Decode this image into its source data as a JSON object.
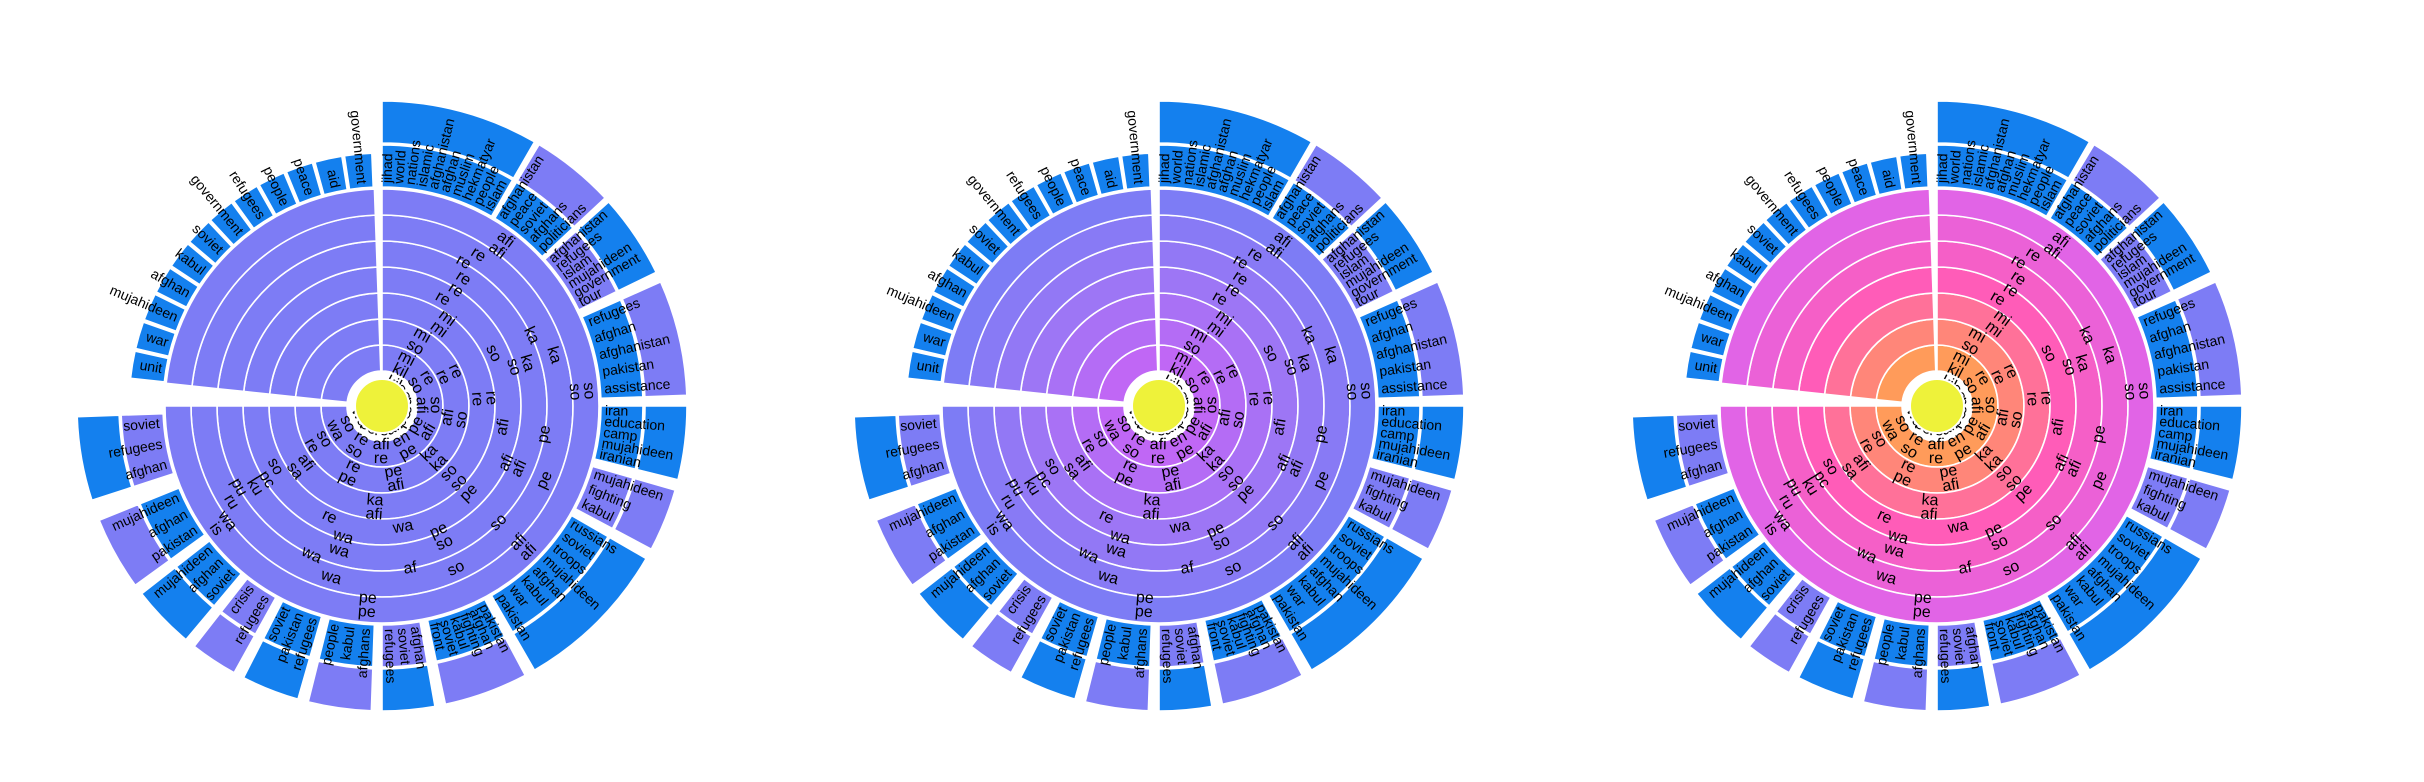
{
  "chart_data": {
    "type": "sunburst",
    "panel_count": 3,
    "color_variants": [
      {
        "name": "",
        "center": "#eef23a",
        "inner": "#7d7cf5",
        "mid": "#7d7cf5",
        "outer": "#7d7cf5",
        "leaf_a": "#1480ee",
        "leaf_b": "#7d7cf5"
      },
      {
        "name": "",
        "center": "#eef23a",
        "inner": "#c067f5",
        "mid": "#9d76f5",
        "outer": "#7d7cf5",
        "leaf_a": "#1480ee",
        "leaf_b": "#7d7cf5"
      },
      {
        "name": "",
        "center": "#eef23a",
        "inner": "#ff9b5a",
        "mid": "#ff5cb8",
        "outer": "#e164e6",
        "leaf_a": "#1480ee",
        "leaf_b": "#7d7cf5"
      }
    ],
    "rings": 7,
    "main_sector": {
      "start_deg": 0,
      "end_deg": 270,
      "leaf_groups": [
        {
          "start_deg": 0,
          "end_deg": 30,
          "words": [
            "jihad",
            "world",
            "nations",
            "islamic",
            "afghanistan",
            "afghan",
            "muslim",
            "hekmatyar",
            "people",
            "islam"
          ]
        },
        {
          "start_deg": 31,
          "end_deg": 47,
          "words": [
            "afghanistan",
            "peace",
            "soviet",
            "afghans",
            "politicians"
          ]
        },
        {
          "start_deg": 48,
          "end_deg": 64,
          "words": [
            "afghanistan",
            "refugees",
            "islam",
            "mujahideen",
            "government",
            "tour"
          ]
        },
        {
          "start_deg": 66,
          "end_deg": 88,
          "words": [
            "refugees",
            "afghan",
            "afghanistan",
            "pakistan",
            "assistance"
          ]
        },
        {
          "start_deg": 90,
          "end_deg": 104,
          "words": [
            "iran",
            "education",
            "camp",
            "mujahideen",
            "iranian"
          ]
        },
        {
          "start_deg": 106,
          "end_deg": 118,
          "words": [
            "mujahideen",
            "fighting",
            "kabul"
          ]
        },
        {
          "start_deg": 120,
          "end_deg": 150,
          "words": [
            "russians",
            "soviet",
            "troops",
            "mujahideen",
            "afghan",
            "kabul",
            "war",
            "pakistan"
          ]
        },
        {
          "start_deg": 152,
          "end_deg": 168,
          "words": [
            "pakistan",
            "afghan",
            "fighting",
            "kabul",
            "soviet",
            "front"
          ]
        },
        {
          "start_deg": 170,
          "end_deg": 180,
          "words": [
            "afghan",
            "soviet",
            "refugees"
          ]
        },
        {
          "start_deg": 182,
          "end_deg": 194,
          "words": [
            "afghans",
            "kabul",
            "people"
          ]
        },
        {
          "start_deg": 196,
          "end_deg": 207,
          "words": [
            "refugees",
            "pakistan",
            "soviet"
          ]
        },
        {
          "start_deg": 209,
          "end_deg": 218,
          "words": [
            "refugees",
            "crisis"
          ]
        },
        {
          "start_deg": 220,
          "end_deg": 232,
          "words": [
            "soviet",
            "afghan",
            "mujahideen"
          ]
        },
        {
          "start_deg": 234,
          "end_deg": 248,
          "words": [
            "pakistan",
            "afghan",
            "mujahideen"
          ]
        },
        {
          "start_deg": 252,
          "end_deg": 268,
          "words": [
            "afghan",
            "refugees",
            "soviet"
          ]
        }
      ],
      "ring_words": [
        [
          "afi",
          "so",
          "afi",
          "pe",
          "is"
        ],
        [
          "afi",
          "so",
          "afi",
          "pe",
          "wa"
        ],
        [
          "re",
          "ka",
          "pe",
          "so",
          "wa",
          "ru"
        ],
        [
          "re",
          "ka",
          "pe",
          "so",
          "af",
          "wa",
          "pu"
        ],
        [
          "re",
          "ka",
          "afi",
          "so",
          "wa",
          "ku"
        ],
        [
          "re",
          "so",
          "afi",
          "pe",
          "wa",
          "pc"
        ],
        [
          "re",
          "so",
          "afi",
          "pe",
          "wa",
          "re",
          "so"
        ],
        [
          "mi",
          "re",
          "so",
          "afi",
          "sa"
        ],
        [
          "mi",
          "re",
          "so",
          "ka",
          "afi"
        ],
        [
          "mi",
          "re",
          "so",
          "ka",
          "afi",
          "pe",
          "re"
        ],
        [
          "so",
          "re",
          "afi",
          "ka",
          "pe",
          "re",
          "so"
        ],
        [
          "mi",
          "re",
          "so",
          "afi",
          "pe",
          "re",
          "so",
          "wa"
        ],
        [
          "kil",
          "so",
          "afi",
          "pe",
          "en",
          "afi",
          "re",
          "so"
        ],
        [
          "kil",
          "so",
          "pe",
          "pe",
          "afi",
          "re",
          "so",
          "wa"
        ]
      ]
    },
    "small_sector": {
      "start_deg": 276,
      "end_deg": 358,
      "words": [
        "unit",
        "war",
        "mujahideen",
        "afghan",
        "kabul",
        "soviet",
        "government",
        "refugees",
        "people",
        "peace",
        "aid",
        "government"
      ]
    }
  }
}
